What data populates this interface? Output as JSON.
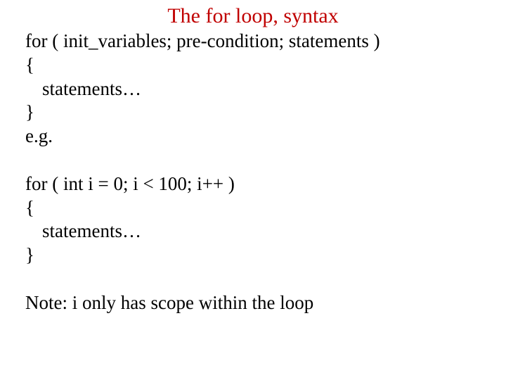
{
  "title": "The for loop, syntax",
  "title_color": "#c00000",
  "body_color": "#000000",
  "background_color": "#ffffff",
  "title_fontsize": 30,
  "body_fontsize": 27,
  "font_family": "Times New Roman",
  "lines": {
    "l1": "for ( init_variables; pre-condition; statements )",
    "l2": "{",
    "l3": "statements…",
    "l4": "}",
    "l5": "e.g.",
    "l6": "for ( int i = 0; i < 100; i++ )",
    "l7": "{",
    "l8": "statements…",
    "l9": "}",
    "l10": "Note: i only has scope within the loop"
  }
}
